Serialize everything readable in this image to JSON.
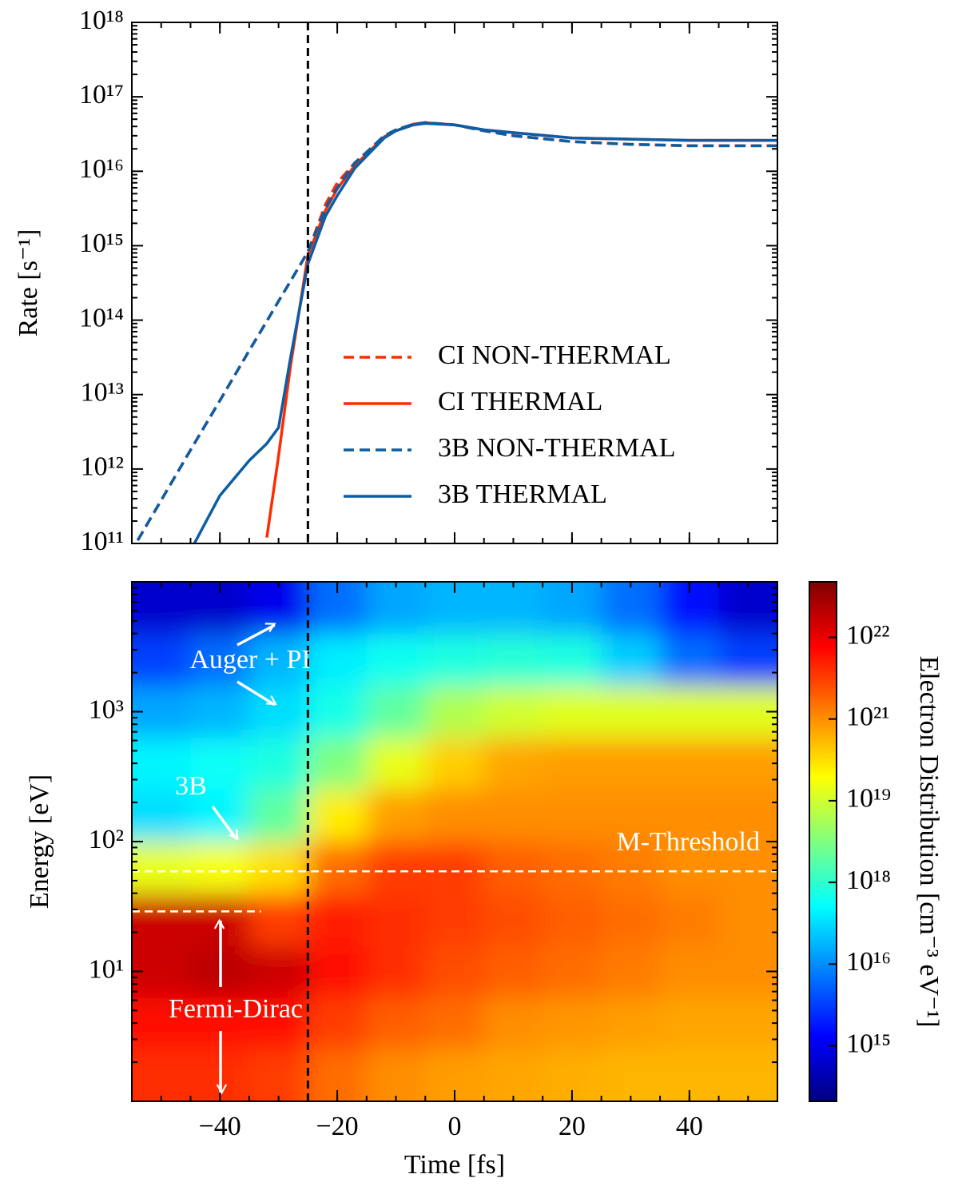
{
  "chart_data": [
    {
      "type": "line",
      "y_label": "Rate [s⁻¹]",
      "log_y": true,
      "xlim": [
        -55,
        55
      ],
      "xticks": [
        -40,
        -20,
        0,
        20,
        40
      ],
      "ylim": [
        100000000000.0,
        1e+18
      ],
      "yticks": [
        {
          "value": 100000000000.0,
          "label": "10¹¹"
        },
        {
          "value": 1000000000000.0,
          "label": "10¹²"
        },
        {
          "value": 10000000000000.0,
          "label": "10¹³"
        },
        {
          "value": 100000000000000.0,
          "label": "10¹⁴"
        },
        {
          "value": 1000000000000000.0,
          "label": "10¹⁵"
        },
        {
          "value": 1e+16,
          "label": "10¹⁶"
        },
        {
          "value": 1e+17,
          "label": "10¹⁷"
        },
        {
          "value": 1e+18,
          "label": "10¹⁸"
        }
      ],
      "legend": "lower right",
      "vline": -25,
      "x": [
        -54,
        -50,
        -45,
        -40,
        -35,
        -32,
        -30,
        -28,
        -25,
        -22,
        -20,
        -17,
        -15,
        -12,
        -10,
        -7,
        -5,
        0,
        5,
        10,
        20,
        30,
        40,
        55
      ],
      "series": [
        {
          "name": "CI NON-THERMAL",
          "color": "#ff2c00",
          "dashed": true,
          "values": [
            110000000000.0,
            380000000000.0,
            1800000000000.0,
            8300000000000.0,
            39000000000000.0,
            97000000000000.0,
            180000000000000.0,
            330000000000000.0,
            830000000000000.0,
            3600000000000000.0,
            7000000000000000.0,
            1.3e+16,
            1.8e+16,
            3e+16,
            3.6e+16,
            4.3e+16,
            4.5e+16,
            4.2e+16,
            3.5e+16,
            3e+16,
            2.5e+16,
            2.3e+16,
            2.2e+16,
            2.2e+16
          ]
        },
        {
          "name": "CI THERMAL",
          "color": "#ff2c00",
          "dashed": false,
          "values": [
            null,
            null,
            null,
            null,
            null,
            120000000000.0,
            1500000000000.0,
            23000000000000.0,
            740000000000000.0,
            3000000000000000.0,
            5800000000000000.0,
            1.2e+16,
            1.7e+16,
            2.9e+16,
            3.5e+16,
            4.3e+16,
            4.5e+16,
            4.2e+16,
            3.6e+16,
            3.3e+16,
            2.8e+16,
            2.7e+16,
            2.6e+16,
            2.6e+16
          ]
        },
        {
          "name": "3B NON-THERMAL",
          "color": "#0c5da5",
          "dashed": true,
          "values": [
            110000000000.0,
            380000000000.0,
            1800000000000.0,
            8300000000000.0,
            39000000000000.0,
            97000000000000.0,
            180000000000000.0,
            330000000000000.0,
            830000000000000.0,
            3200000000000000.0,
            6000000000000000.0,
            1.3e+16,
            1.8e+16,
            3e+16,
            3.6e+16,
            4.3e+16,
            4.5e+16,
            4.2e+16,
            3.5e+16,
            3e+16,
            2.5e+16,
            2.3e+16,
            2.2e+16,
            2.2e+16
          ]
        },
        {
          "name": "3B THERMAL",
          "color": "#0c5da5",
          "dashed": false,
          "values": [
            null,
            null,
            80000000000.0,
            440000000000.0,
            1300000000000.0,
            2200000000000.0,
            3600000000000.0,
            30000000000000.0,
            570000000000000.0,
            2500000000000000.0,
            4700000000000000.0,
            1.1e+16,
            1.6e+16,
            2.8e+16,
            3.5e+16,
            4.2e+16,
            4.4e+16,
            4.2e+16,
            3.6e+16,
            3.3e+16,
            2.8e+16,
            2.7e+16,
            2.6e+16,
            2.6e+16
          ]
        }
      ]
    },
    {
      "type": "heatmap",
      "x_label": "Time [fs]",
      "y_label": "Energy [eV]",
      "log_y": true,
      "xlim": [
        -55,
        55
      ],
      "xticks": [
        {
          "value": -40,
          "label": "−40"
        },
        {
          "value": -20,
          "label": "−20"
        },
        0,
        20,
        40
      ],
      "ylim": [
        1,
        10000
      ],
      "yticks": [
        {
          "value": 10,
          "label": "10¹"
        },
        {
          "value": 100,
          "label": "10²"
        },
        {
          "value": 1000,
          "label": "10³"
        }
      ],
      "colormap": "jet",
      "vline": -25,
      "hlines": [
        {
          "value": 59,
          "label": "M-Threshold"
        },
        {
          "value": 29,
          "xmax": -33
        }
      ],
      "annotations": [
        "Auger + PI",
        "3B",
        "Fermi-Dirac"
      ],
      "x": [
        -50,
        -40,
        -30,
        -20,
        -10,
        0,
        10,
        20,
        30,
        40,
        50
      ],
      "y": [
        1.6,
        4,
        10,
        25,
        63,
        160,
        400,
        1000,
        2500,
        6300
      ],
      "z": [
        [
          4e+21,
          4e+21,
          3.2e+21,
          1.6e+21,
          1e+21,
          6.3e+20,
          5e+20,
          4e+20,
          3.2e+20,
          3.2e+20,
          3.2e+20
        ],
        [
          6.3e+21,
          6.3e+21,
          6.3e+21,
          3.2e+21,
          2e+21,
          1.6e+21,
          1e+21,
          8e+20,
          6.3e+20,
          5e+20,
          5e+20
        ],
        [
          1.6e+22,
          2e+22,
          1.6e+22,
          6.3e+21,
          4e+21,
          2.5e+21,
          2e+21,
          1.6e+21,
          1.3e+21,
          1e+21,
          1e+21
        ],
        [
          1.6e+22,
          1.6e+22,
          3.2e+21,
          5e+21,
          4e+21,
          3.2e+21,
          2.5e+21,
          2e+21,
          1.6e+21,
          1.3e+21,
          1e+21
        ],
        [
          2e+19,
          3.2e+19,
          1e+20,
          1.6e+21,
          3.2e+21,
          3.2e+21,
          2e+21,
          1.6e+21,
          1.3e+21,
          1e+21,
          1e+21
        ],
        [
          1e+17,
          2e+17,
          2e+18,
          6.3e+19,
          6.3e+20,
          1e+21,
          1e+21,
          1e+21,
          1e+21,
          1e+21,
          1e+21
        ],
        [
          2e+17,
          3.2e+17,
          6.3e+17,
          3.2e+18,
          2e+19,
          1.6e+20,
          5e+20,
          6.3e+20,
          6.3e+20,
          6.3e+20,
          6.3e+20
        ],
        [
          2e+16,
          3.2e+16,
          1e+17,
          5e+17,
          2e+18,
          6.3e+18,
          1e+19,
          1.6e+19,
          1.6e+19,
          1.6e+19,
          1.6e+19
        ],
        [
          3200000000000000.0,
          6300000000000000.0,
          3.2e+16,
          1.6e+17,
          4e+17,
          6.3e+17,
          8e+17,
          6.3e+17,
          6.3e+16,
          6300000000000000.0,
          3200000000000000.0
        ],
        [
          630000000000000.0,
          630000000000000.0,
          1000000000000000.0,
          6300000000000000.0,
          2e+16,
          3.2e+16,
          3.2e+16,
          2e+16,
          6300000000000000.0,
          1600000000000000.0,
          630000000000000.0
        ]
      ],
      "colorbar": {
        "label": "Electron Distribution [cm⁻³ eV⁻¹]",
        "ticks": [
          {
            "value": 1000000000000000.0,
            "label": "10¹⁵"
          },
          {
            "value": 1e+16,
            "label": "10¹⁶"
          },
          {
            "value": 1e+18,
            "label": "10¹⁸"
          },
          {
            "value": 1e+19,
            "label": "10¹⁹"
          },
          {
            "value": 1e+21,
            "label": "10²¹"
          },
          {
            "value": 1e+22,
            "label": "10²²"
          }
        ]
      }
    }
  ]
}
